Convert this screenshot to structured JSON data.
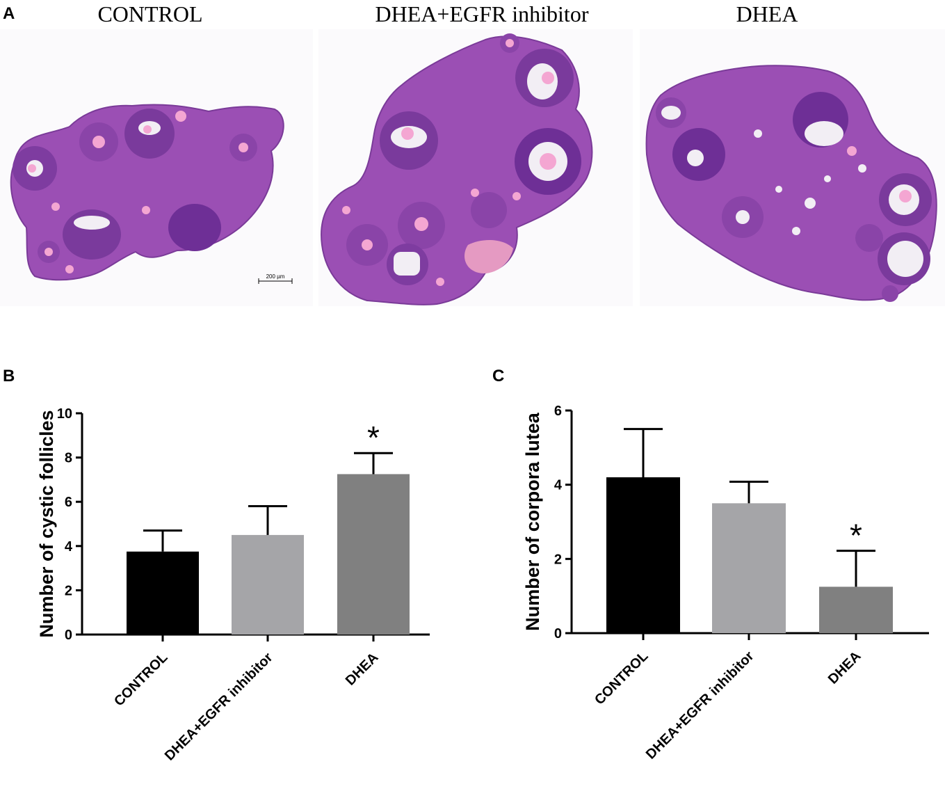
{
  "panel_a": {
    "letter": "A",
    "images": [
      {
        "title": "CONTROL",
        "scale_bar": "200 µm"
      },
      {
        "title": "DHEA+EGFR inhibitor"
      },
      {
        "title": "DHEA"
      }
    ],
    "colors": {
      "tissue": "#9b4fb4",
      "follicle_ring": "#6e2f96",
      "antrum": "#f2eef4",
      "oocyte": "#f4a6d2",
      "stroma_pink": "#e59ac2"
    }
  },
  "panel_b": {
    "letter": "B"
  },
  "panel_c": {
    "letter": "C"
  },
  "chart_data": [
    {
      "type": "bar",
      "categories": [
        "CONTROL",
        "DHEA+EGFR inhibitor",
        "DHEA"
      ],
      "values": [
        3.75,
        4.5,
        7.25
      ],
      "errors": [
        0.95,
        1.3,
        0.95
      ],
      "annotations": [
        "",
        "",
        "*"
      ],
      "colors": [
        "#000000",
        "#a5a5a8",
        "#808080"
      ],
      "ylabel": "Number of cystic follicles",
      "ylim": [
        0,
        10
      ],
      "yticks": [
        "0",
        "2",
        "4",
        "6",
        "8",
        "10"
      ]
    },
    {
      "type": "bar",
      "categories": [
        "CONTROL",
        "DHEA+EGFR inhibitor",
        "DHEA"
      ],
      "values": [
        4.2,
        3.5,
        1.25
      ],
      "errors": [
        1.3,
        0.58,
        0.97
      ],
      "annotations": [
        "",
        "",
        "*"
      ],
      "colors": [
        "#000000",
        "#a5a5a8",
        "#808080"
      ],
      "ylabel": "Number of corpora  lutea",
      "ylim": [
        0,
        6
      ],
      "yticks": [
        "0",
        "2",
        "4",
        "6"
      ]
    }
  ]
}
